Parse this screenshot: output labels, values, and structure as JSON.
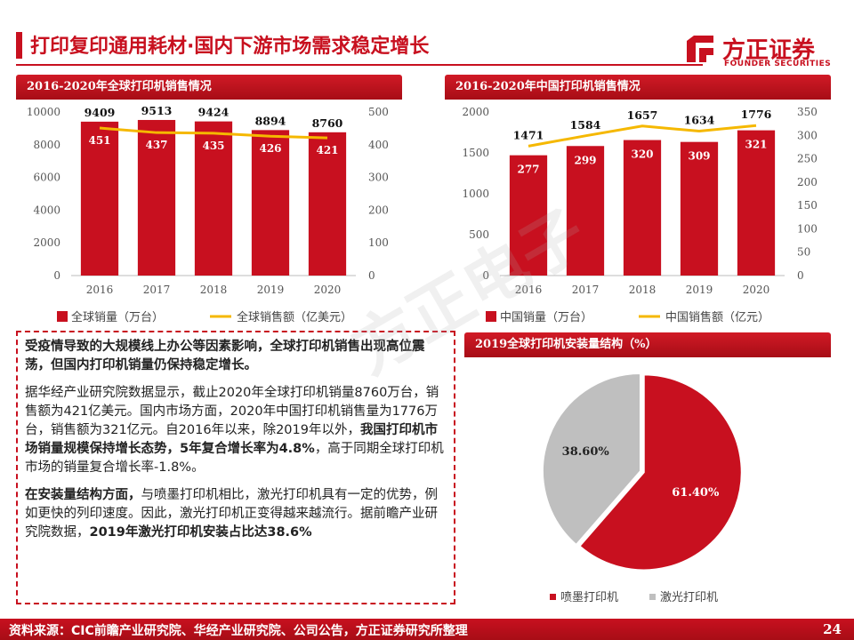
{
  "header": {
    "title": "打印复印通用耗材·国内下游市场需求稳定增长",
    "logo_cn": "方正证券",
    "logo_en": "FOUNDER SECURITIES"
  },
  "watermark": "方正电子",
  "panels": {
    "global_title": "2016-2020年全球打印机销售情况",
    "china_title": "2016-2020年中国打印机销售情况",
    "pie_title": "2019全球打印机安装量结构（%）"
  },
  "textbox": {
    "lead": "受疫情导致的大规模线上办公等因素影响，全球打印机销售出现高位震荡，但国内打印机销量仍保持稳定增长。",
    "p2_a": "据华经产业研究院数据显示，截止2020年全球打印机销量8760万台，销售额为421亿美元。国内市场方面，2020年中国打印机销售量为1776万台，销售额为321亿元。自2016年以来，除2019年以外，",
    "p2_b": "我国打印机市场销量规模保持增长态势，5年复合增长率为4.8%",
    "p2_c": "，高于同期全球打印机市场的销量复合增长率-1.8%。",
    "p3_a": "在安装量结构方面，",
    "p3_b": "与喷墨打印机相比，激光打印机具有一定的优势，例如更快的列印速度。因此，激光打印机正变得越来越流行。据前瞻产业研究院数据，",
    "p3_c": "2019年激光打印机安装占比达38.6%"
  },
  "footer": {
    "source": "资料来源：CIC前瞻产业研究院、华经产业研究院、公司公告，方正证券研究所整理",
    "page": "24"
  },
  "colors": {
    "brand": "#c8101f",
    "line": "#f5b800",
    "gray": "#bfbfbf"
  },
  "chart_data": [
    {
      "type": "bar",
      "title": "2016-2020年全球打印机销售情况",
      "categories": [
        "2016",
        "2017",
        "2018",
        "2019",
        "2020"
      ],
      "series": [
        {
          "name": "全球销量（万台）",
          "kind": "bar",
          "axis": "left",
          "values": [
            9409,
            9513,
            9424,
            8894,
            8760
          ]
        },
        {
          "name": "全球销售额（亿美元）",
          "kind": "line",
          "axis": "right",
          "values": [
            451,
            437,
            435,
            426,
            421
          ]
        }
      ],
      "ylim": [
        0,
        10000
      ],
      "yticks": [
        0,
        2000,
        4000,
        6000,
        8000,
        10000
      ],
      "y2lim": [
        0,
        500
      ],
      "y2ticks": [
        0,
        100,
        200,
        300,
        400,
        500
      ]
    },
    {
      "type": "bar",
      "title": "2016-2020年中国打印机销售情况",
      "categories": [
        "2016",
        "2017",
        "2018",
        "2019",
        "2020"
      ],
      "series": [
        {
          "name": "中国销量（万台）",
          "kind": "bar",
          "axis": "left",
          "values": [
            1471,
            1584,
            1657,
            1634,
            1776
          ]
        },
        {
          "name": "中国销售额（亿元）",
          "kind": "line",
          "axis": "right",
          "values": [
            277,
            299,
            320,
            309,
            321
          ]
        }
      ],
      "ylim": [
        0,
        2000
      ],
      "yticks": [
        0,
        500,
        1000,
        1500,
        2000
      ],
      "y2lim": [
        0,
        350
      ],
      "y2ticks": [
        0,
        50,
        100,
        150,
        200,
        250,
        300,
        350
      ]
    },
    {
      "type": "pie",
      "title": "2019全球打印机安装量结构（%）",
      "labels": [
        "喷墨打印机",
        "激光打印机"
      ],
      "values": [
        61.4,
        38.6
      ],
      "value_labels": [
        "61.40%",
        "38.60%"
      ]
    }
  ]
}
